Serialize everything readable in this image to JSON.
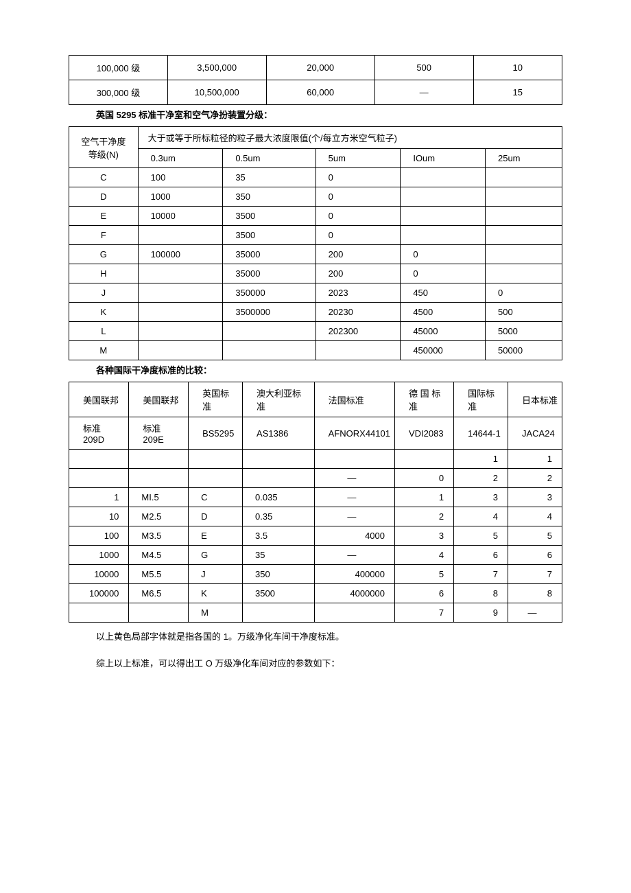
{
  "table1": {
    "rows": [
      [
        "100,000 级",
        "3,500,000",
        "20,000",
        "500",
        "10"
      ],
      [
        "300,000 级",
        "10,500,000",
        "60,000",
        "—",
        "15"
      ]
    ],
    "col_widths": [
      "20%",
      "20%",
      "22%",
      "20%",
      "18%"
    ]
  },
  "title1": "英国 5295 标准干净室和空气净扮装置分级：",
  "table2": {
    "corner_label": "空气干净度等级(N)",
    "span_header": "大于或等于所标粒径的粒子最大浓度限值(个/每立方米空气粒子)",
    "columns": [
      "0.3um",
      "0.5um",
      "5um",
      "IOum",
      "25um"
    ],
    "rows": [
      {
        "label": "C",
        "cells": [
          "100",
          "35",
          "0",
          "",
          ""
        ]
      },
      {
        "label": "D",
        "cells": [
          "1000",
          "350",
          "0",
          "",
          ""
        ]
      },
      {
        "label": "E",
        "cells": [
          "10000",
          "3500",
          "0",
          "",
          ""
        ]
      },
      {
        "label": "F",
        "cells": [
          "",
          "3500",
          "0",
          "",
          ""
        ]
      },
      {
        "label": "G",
        "cells": [
          "100000",
          "35000",
          "200",
          "0",
          ""
        ]
      },
      {
        "label": "H",
        "cells": [
          "",
          "35000",
          "200",
          "0",
          ""
        ]
      },
      {
        "label": "J",
        "cells": [
          "",
          "350000",
          "2023",
          "450",
          "0"
        ]
      },
      {
        "label": "K",
        "cells": [
          "",
          "3500000",
          "20230",
          "4500",
          "500"
        ]
      },
      {
        "label": "L",
        "cells": [
          "",
          "",
          "202300",
          "45000",
          "5000"
        ]
      },
      {
        "label": "M",
        "cells": [
          "",
          "",
          "",
          "450000",
          "50000"
        ]
      }
    ]
  },
  "title2": "各种国际干净度标准的比较：",
  "table3": {
    "headers": [
      "美国联邦",
      "美国联邦",
      "英国标准",
      "澳大利亚标准",
      "法国标准",
      "德 国 标准",
      "国际标准",
      "日本标准"
    ],
    "subheaders": [
      "标准 209D",
      "标准 209E",
      "BS5295",
      "AS1386",
      "AFNORX44101",
      "VDI2083",
      "14644-1",
      "JACA24"
    ],
    "rows": [
      [
        "",
        "",
        "",
        "",
        "",
        "",
        "1",
        "1"
      ],
      [
        "",
        "",
        "",
        "",
        "—",
        "0",
        "2",
        "2"
      ],
      [
        "1",
        "MI.5",
        "C",
        "0.035",
        "—",
        "1",
        "3",
        "3"
      ],
      [
        "10",
        "M2.5",
        "D",
        "0.35",
        "—",
        "2",
        "4",
        "4"
      ],
      [
        "100",
        "M3.5",
        "E",
        "3.5",
        "4000",
        "3",
        "5",
        "5"
      ],
      [
        "1000",
        "M4.5",
        "G",
        "35",
        "—",
        "4",
        "6",
        "6"
      ],
      [
        "10000",
        "M5.5",
        "J",
        "350",
        "400000",
        "5",
        "7",
        "7"
      ],
      [
        "100000",
        "M6.5",
        "K",
        "3500",
        "4000000",
        "6",
        "8",
        "8"
      ],
      [
        "",
        "",
        "M",
        "",
        "",
        "7",
        "9",
        "—"
      ]
    ]
  },
  "footer1": "以上黄色局部字体就是指各国的 1。万级净化车间干净度标准。",
  "footer2": "综上以上标准，可以得出工 O 万级净化车间对应的参数如下："
}
